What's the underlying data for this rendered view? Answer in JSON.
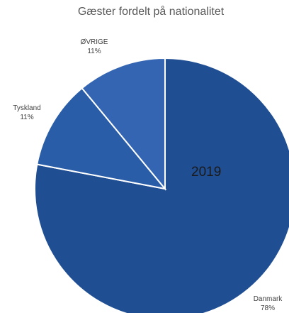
{
  "chart_data": {
    "type": "pie",
    "title": "Gæster fordelt på nationalitet",
    "annotation": "2019",
    "slices": [
      {
        "name": "Danmark",
        "percent_label": "78%",
        "value": 78,
        "color": "#1f4e93"
      },
      {
        "name": "Tyskland",
        "percent_label": "11%",
        "value": 11,
        "color": "#2a5da8"
      },
      {
        "name": "ØVRIGE",
        "percent_label": "11%",
        "value": 11,
        "color": "#3465b2"
      }
    ],
    "legend": "none",
    "data_labels": "outside"
  }
}
